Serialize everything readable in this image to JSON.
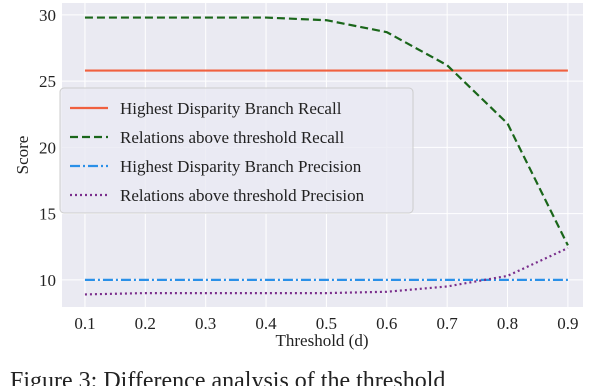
{
  "chart_data": {
    "type": "line",
    "xlabel": "Threshold (d)",
    "ylabel": "Score",
    "x": [
      0.1,
      0.2,
      0.3,
      0.4,
      0.5,
      0.6,
      0.7,
      0.8,
      0.9
    ],
    "series": [
      {
        "name": "Highest Disparity Branch Recall",
        "color": "#f0603f",
        "dash": "solid",
        "values": [
          25.8,
          25.8,
          25.8,
          25.8,
          25.8,
          25.8,
          25.8,
          25.8,
          25.8
        ]
      },
      {
        "name": "Relations above threshold Recall",
        "color": "#1a661a",
        "dash": "dashed",
        "values": [
          29.8,
          29.8,
          29.8,
          29.8,
          29.6,
          28.7,
          26.2,
          21.8,
          12.6
        ]
      },
      {
        "name": "Highest Disparity Branch Precision",
        "color": "#2a90e8",
        "dash": "dashdot",
        "values": [
          10.0,
          10.0,
          10.0,
          10.0,
          10.0,
          10.0,
          10.0,
          10.0,
          10.0
        ]
      },
      {
        "name": "Relations above threshold Precision",
        "color": "#7a2e8c",
        "dash": "dotted",
        "values": [
          8.9,
          9.0,
          9.0,
          9.0,
          9.0,
          9.1,
          9.5,
          10.3,
          12.4
        ]
      }
    ],
    "xlim": [
      0.062,
      0.925
    ],
    "xticks": [
      0.1,
      0.2,
      0.3,
      0.4,
      0.5,
      0.6,
      0.7,
      0.8,
      0.9
    ],
    "ylim": [
      7.95,
      30.9
    ],
    "yticks": [
      10,
      15,
      20,
      25,
      30
    ],
    "grid": true,
    "legend": "center-left",
    "caption": "Figure 3: Difference analysis of the threshold"
  }
}
